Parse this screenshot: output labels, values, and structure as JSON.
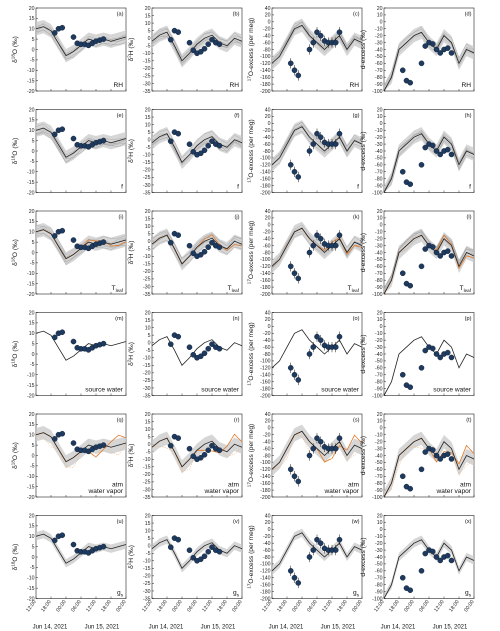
{
  "chart_data": {
    "type": "line",
    "colors": {
      "observed": "#1f3a5f",
      "model": "#222222",
      "envelope": "#c8c8c8",
      "ensemble": "#9a9a9a",
      "alt": "#e07a2c",
      "alt2": "#f0b070"
    },
    "time_ticks": [
      "12:00",
      "18:00",
      "00:00",
      "06:00",
      "12:00",
      "18:00",
      "00:00"
    ],
    "date_labels": [
      "Jun 14, 2021",
      "Jun 15, 2021"
    ],
    "x_axis_title": "(UTC)",
    "columns": [
      {
        "key": "d18O",
        "ylabel_main": "δ",
        "ylabel_sup": "18",
        "ylabel_rest": "O (‰)",
        "ylim": [
          -20,
          20
        ],
        "yticks": [
          20,
          15,
          10,
          5,
          0,
          -5,
          -10,
          -15,
          -20
        ]
      },
      {
        "key": "d2H",
        "ylabel_main": "δ",
        "ylabel_sup": "2",
        "ylabel_rest": "H (‰)",
        "ylim": [
          -35,
          20
        ],
        "yticks": [
          20,
          15,
          10,
          5,
          0,
          -5,
          -10,
          -15,
          -20,
          -25,
          -30,
          -35
        ]
      },
      {
        "key": "O17ex",
        "ylabel_main": "",
        "ylabel_sup": "17",
        "ylabel_rest": "O-excess (per meg)",
        "ylim": [
          -200,
          40
        ],
        "yticks": [
          40,
          20,
          0,
          -20,
          -40,
          -60,
          -80,
          -100,
          -120,
          -140,
          -160,
          -180,
          -200
        ]
      },
      {
        "key": "dex",
        "ylabel_main": "",
        "ylabel_sup": "",
        "ylabel_rest": "d-excess (‰)",
        "ylim": [
          -100,
          20
        ],
        "yticks": [
          20,
          10,
          0,
          -10,
          -20,
          -30,
          -40,
          -50,
          -60,
          -70,
          -80,
          -90,
          -100
        ]
      }
    ],
    "rows": [
      {
        "label": "RH",
        "sub": "",
        "panels": [
          "(a)",
          "(b)",
          "(c)",
          "(d)"
        ],
        "variant": "ens"
      },
      {
        "label": "f",
        "sub": "",
        "panels": [
          "(e)",
          "(f)",
          "(g)",
          "(h)"
        ],
        "variant": "ens"
      },
      {
        "label": "T",
        "sub": "leaf",
        "panels": [
          "(i)",
          "(j)",
          "(k)",
          "(l)"
        ],
        "variant": "tleaf"
      },
      {
        "label": "source water",
        "sub": "",
        "panels": [
          "(m)",
          "(n)",
          "(o)",
          "(p)"
        ],
        "variant": "src"
      },
      {
        "label": "atm\nwater vapor",
        "sub": "",
        "panels": [
          "(q)",
          "(r)",
          "(s)",
          "(t)"
        ],
        "variant": "atm"
      },
      {
        "label": "g",
        "sub": "s",
        "panels": [
          "(u)",
          "(v)",
          "(w)",
          "(x)"
        ],
        "variant": "gs"
      }
    ],
    "observed": {
      "x": [
        5,
        6,
        7,
        10,
        11,
        12,
        13,
        14,
        15,
        16,
        17,
        18
      ],
      "d18O": [
        8,
        10,
        10.5,
        6,
        3,
        2.5,
        2.5,
        2,
        3,
        4,
        4.5,
        5
      ],
      "d18O_err": [
        1,
        1,
        1,
        1,
        0.8,
        0.8,
        0.8,
        0.8,
        0.8,
        0.8,
        0.8,
        0.8
      ],
      "d2H": [
        -1,
        5,
        4,
        -3,
        -8,
        -10,
        -9,
        -7,
        -4,
        -1,
        -3,
        -4
      ],
      "d2H_err": [
        1.5,
        1.5,
        1.5,
        1.5,
        1.2,
        1.2,
        1.2,
        1.2,
        1.2,
        1.2,
        1.2,
        1.2
      ],
      "O17ex": [
        -120,
        -140,
        -155,
        -80,
        -60,
        -30,
        -40,
        -55,
        -60,
        -60,
        -60,
        -30
      ],
      "O17ex_err": [
        15,
        15,
        15,
        15,
        15,
        15,
        15,
        15,
        15,
        15,
        15,
        15
      ],
      "dex": [
        -70,
        -85,
        -88,
        -60,
        -35,
        -30,
        -32,
        -40,
        -45,
        -40,
        -38,
        -45
      ],
      "dex_err": [
        3,
        3,
        3,
        3,
        3,
        3,
        3,
        3,
        3,
        3,
        3,
        3
      ]
    },
    "model": {
      "x": [
        0,
        2,
        4,
        6,
        8,
        10,
        12,
        14,
        16,
        18,
        20,
        22,
        24
      ],
      "d18O": [
        10,
        11,
        9,
        3,
        -3,
        -1,
        2,
        5,
        4,
        5,
        4,
        5,
        6
      ],
      "d2H": [
        -2,
        2,
        4,
        -5,
        -15,
        -10,
        -4,
        0,
        2,
        -3,
        -5,
        0,
        -2
      ],
      "O17ex": [
        -120,
        -100,
        -60,
        -20,
        -10,
        -40,
        -60,
        -80,
        -60,
        -40,
        -80,
        -50,
        -60
      ],
      "dex": [
        -100,
        -80,
        -40,
        -30,
        -20,
        -15,
        -30,
        -40,
        -20,
        -30,
        -60,
        -40,
        -45
      ]
    }
  }
}
